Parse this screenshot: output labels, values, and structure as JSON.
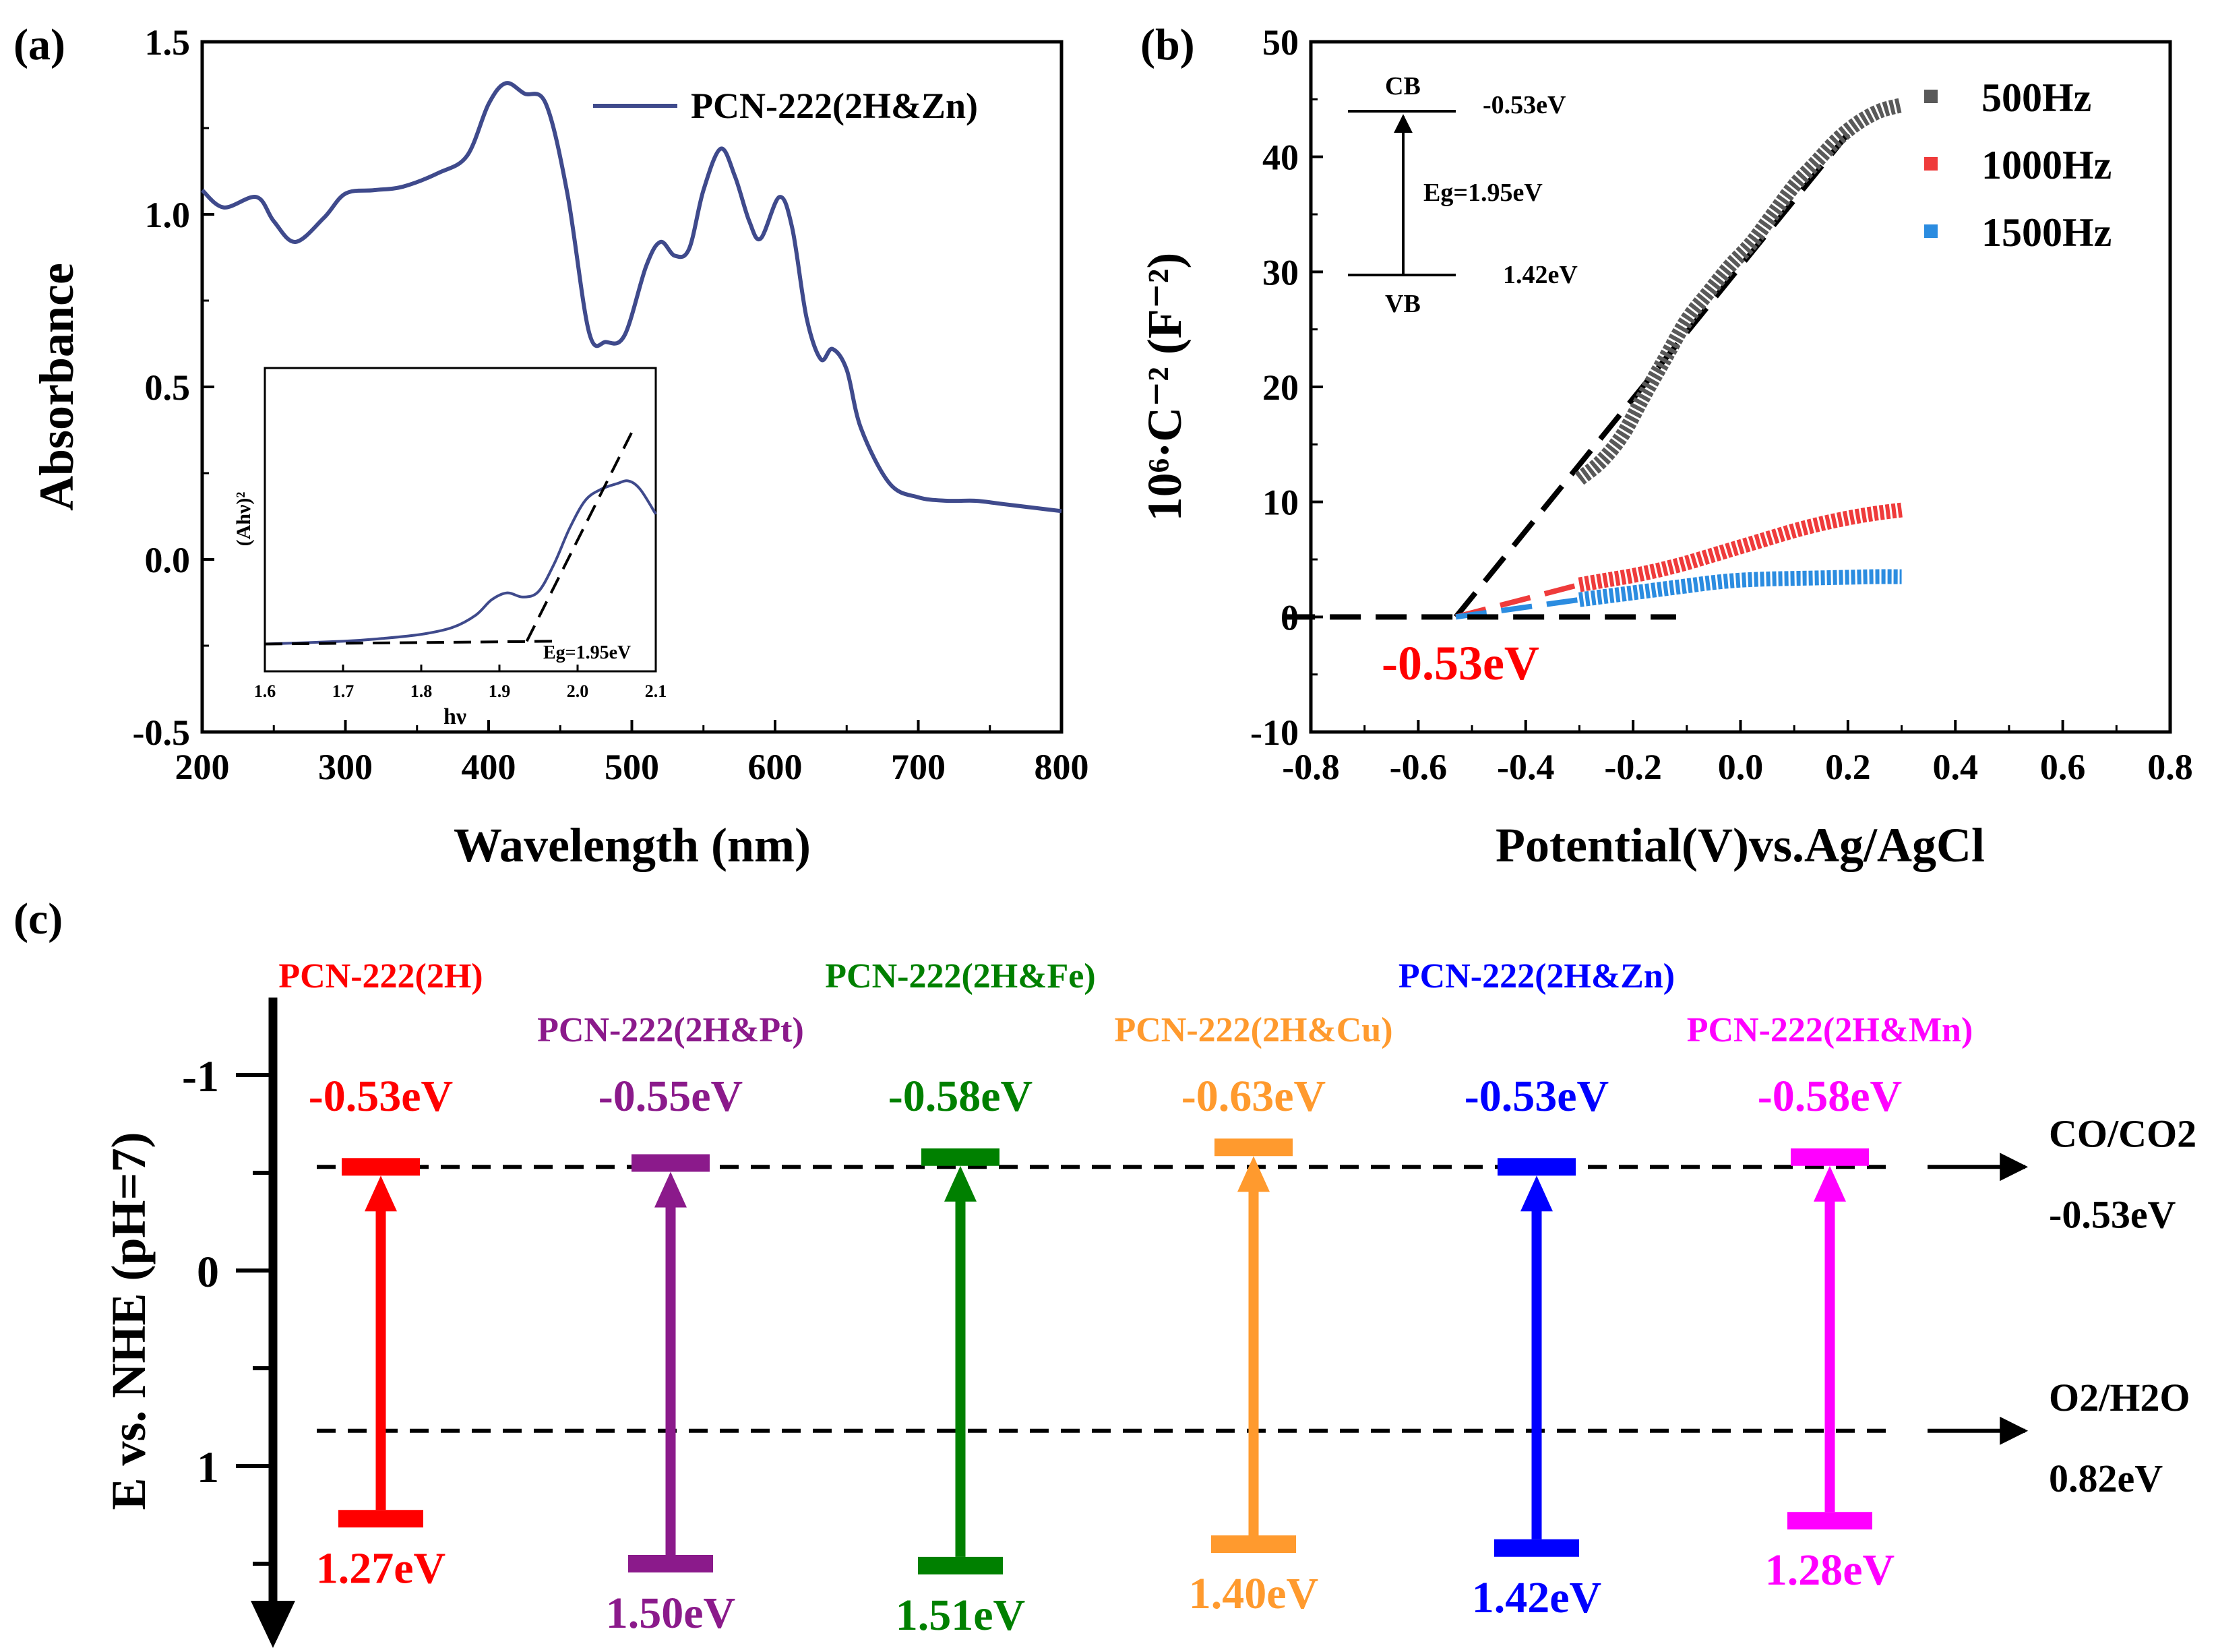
{
  "colors": {
    "abs_line": "#3f4a8c",
    "c500": "#595959",
    "c1000": "#ef3b3b",
    "c1500": "#2b8ce0",
    "red": "#ff0000",
    "purple": "#8b1a8b",
    "green": "#008000",
    "orange": "#ff9a2e",
    "blue": "#0000ff",
    "magenta": "#ff00ff"
  },
  "panel_a": {
    "label": "(a)",
    "legend": "PCN-222(2H&Zn)",
    "inset": {
      "ylabel": "(Ahν)²",
      "xlabel": "hν",
      "eg_label": "Eg=1.95eV"
    }
  },
  "panel_b": {
    "label": "(b)",
    "annotation": "-0.53eV",
    "inset": {
      "cb": "CB",
      "vb": "VB",
      "cb_value": "-0.53eV",
      "vb_value": "1.42eV",
      "eg": "Eg=1.95eV"
    }
  },
  "panel_c": {
    "label": "(c)",
    "ylabel": "E vs. NHE (pH=7)",
    "refs": [
      {
        "name": "CO/CO2",
        "value": "-0.53eV",
        "level": -0.53
      },
      {
        "name": "O2/H2O",
        "value": "0.82eV",
        "level": 0.82
      }
    ],
    "materials": [
      {
        "name": "PCN-222(2H)",
        "cb": -0.53,
        "vb": 1.27,
        "cb_label": "-0.53eV",
        "vb_label": "1.27eV",
        "color": "#ff0000"
      },
      {
        "name": "PCN-222(2H&Pt)",
        "cb": -0.55,
        "vb": 1.5,
        "cb_label": "-0.55eV",
        "vb_label": "1.50eV",
        "color": "#8b1a8b"
      },
      {
        "name": "PCN-222(2H&Fe)",
        "cb": -0.58,
        "vb": 1.51,
        "cb_label": "-0.58eV",
        "vb_label": "1.51eV",
        "color": "#008000"
      },
      {
        "name": "PCN-222(2H&Cu)",
        "cb": -0.63,
        "vb": 1.4,
        "cb_label": "-0.63eV",
        "vb_label": "1.40eV",
        "color": "#ff9a2e"
      },
      {
        "name": "PCN-222(2H&Zn)",
        "cb": -0.53,
        "vb": 1.42,
        "cb_label": "-0.53eV",
        "vb_label": "1.42eV",
        "color": "#0000ff"
      },
      {
        "name": "PCN-222(2H&Mn)",
        "cb": -0.58,
        "vb": 1.28,
        "cb_label": "-0.58eV",
        "vb_label": "1.28eV",
        "color": "#ff00ff"
      }
    ]
  },
  "chart_data": [
    {
      "type": "line",
      "title": "",
      "xlabel": "Wavelength (nm)",
      "ylabel": "Absorbance",
      "xlim": [
        200,
        800
      ],
      "ylim": [
        -0.5,
        1.5
      ],
      "xticks": [
        200,
        300,
        400,
        500,
        600,
        700,
        800
      ],
      "xtick_labels": [
        "200",
        "300",
        "400",
        "500",
        "600",
        "700",
        "800"
      ],
      "yticks": [
        -0.5,
        0.0,
        0.5,
        1.0,
        1.5
      ],
      "ytick_labels": [
        "-0.5",
        "0.0",
        "0.5",
        "1.0",
        "1.5"
      ],
      "series": [
        {
          "name": "PCN-222(2H&Zn)",
          "x": [
            200,
            215,
            238,
            250,
            265,
            285,
            300,
            320,
            340,
            365,
            385,
            400,
            412,
            425,
            440,
            455,
            470,
            482,
            495,
            510,
            520,
            530,
            540,
            550,
            562,
            572,
            582,
            590,
            603,
            612,
            622,
            632,
            640,
            650,
            660,
            680,
            700,
            720,
            740,
            760,
            780,
            800
          ],
          "y": [
            1.07,
            1.02,
            1.05,
            0.98,
            0.92,
            0.99,
            1.06,
            1.07,
            1.08,
            1.12,
            1.17,
            1.32,
            1.38,
            1.35,
            1.32,
            1.06,
            0.66,
            0.63,
            0.65,
            0.85,
            0.92,
            0.88,
            0.9,
            1.07,
            1.19,
            1.11,
            0.98,
            0.93,
            1.05,
            0.96,
            0.7,
            0.58,
            0.61,
            0.55,
            0.38,
            0.22,
            0.18,
            0.17,
            0.17,
            0.16,
            0.15,
            0.14
          ]
        }
      ],
      "inset": {
        "xlabel": "hν",
        "ylabel": "(Ahν)²",
        "xlim": [
          1.6,
          2.1
        ],
        "xticks": [
          1.6,
          1.7,
          1.8,
          1.9,
          2.0,
          2.1
        ],
        "xtick_labels": [
          "1.6",
          "1.7",
          "1.8",
          "1.9",
          "2.0",
          "2.1"
        ],
        "ylim": [
          0,
          1
        ],
        "x": [
          1.6,
          1.7,
          1.75,
          1.8,
          1.84,
          1.87,
          1.89,
          1.91,
          1.93,
          1.95,
          1.97,
          1.99,
          2.01,
          2.03,
          2.05,
          2.065,
          2.08,
          2.1
        ],
        "y": [
          0.05,
          0.06,
          0.07,
          0.085,
          0.11,
          0.155,
          0.21,
          0.235,
          0.22,
          0.24,
          0.34,
          0.47,
          0.57,
          0.61,
          0.63,
          0.64,
          0.61,
          0.52
        ],
        "tangent_x": [
          1.935,
          2.07
        ],
        "tangent_y": [
          0.06,
          0.82
        ],
        "baseline_x": [
          1.6,
          1.97
        ],
        "baseline_y": [
          0.05,
          0.06
        ],
        "eg": 1.95
      }
    },
    {
      "type": "line",
      "title": "",
      "xlabel": "Potential(V)vs.Ag/AgCl",
      "ylabel": "10⁶·C⁻² (F⁻²)",
      "xlim": [
        -0.8,
        0.8
      ],
      "ylim": [
        -10,
        50
      ],
      "xticks": [
        -0.8,
        -0.6,
        -0.4,
        -0.2,
        0.0,
        0.2,
        0.4,
        0.6,
        0.8
      ],
      "xtick_labels": [
        "-0.8",
        "-0.6",
        "-0.4",
        "-0.2",
        "0.0",
        "0.2",
        "0.4",
        "0.6",
        "0.8"
      ],
      "yticks": [
        -10,
        0,
        10,
        20,
        30,
        40,
        50
      ],
      "ytick_labels": [
        "-10",
        "0",
        "10",
        "20",
        "30",
        "40",
        "50"
      ],
      "series": [
        {
          "name": "500Hz",
          "x": [
            -0.3,
            -0.26,
            -0.22,
            -0.18,
            -0.14,
            -0.1,
            -0.06,
            -0.02,
            0.02,
            0.06,
            0.1,
            0.14,
            0.18,
            0.22,
            0.26,
            0.3
          ],
          "y": [
            12.0,
            13.5,
            15.8,
            19.2,
            22.5,
            25.8,
            28.2,
            30.5,
            32.5,
            35.0,
            37.5,
            39.5,
            41.5,
            43.0,
            44.0,
            44.5
          ]
        },
        {
          "name": "1000Hz",
          "x": [
            -0.3,
            -0.25,
            -0.2,
            -0.15,
            -0.1,
            -0.05,
            0.0,
            0.05,
            0.1,
            0.15,
            0.2,
            0.25,
            0.3
          ],
          "y": [
            2.8,
            3.2,
            3.6,
            4.1,
            4.7,
            5.4,
            6.1,
            6.8,
            7.5,
            8.1,
            8.6,
            9.0,
            9.3
          ]
        },
        {
          "name": "1500Hz",
          "x": [
            -0.3,
            -0.25,
            -0.2,
            -0.15,
            -0.1,
            -0.05,
            0.0,
            0.05,
            0.1,
            0.15,
            0.2,
            0.25,
            0.3
          ],
          "y": [
            1.5,
            1.8,
            2.1,
            2.4,
            2.7,
            3.0,
            3.2,
            3.3,
            3.35,
            3.4,
            3.45,
            3.5,
            3.5
          ]
        }
      ],
      "fit_lines": [
        {
          "color": "#000000",
          "x": [
            -0.53,
            0.2
          ],
          "y": [
            0,
            42
          ]
        },
        {
          "color": "#ef3b3b",
          "x": [
            -0.53,
            -0.3
          ],
          "y": [
            0,
            2.8
          ]
        },
        {
          "color": "#2b8ce0",
          "x": [
            -0.53,
            -0.3
          ],
          "y": [
            0,
            1.5
          ]
        },
        {
          "color": "#000000",
          "x": [
            -0.85,
            -0.12
          ],
          "y": [
            0,
            0
          ]
        }
      ],
      "flatband_potential": -0.53
    },
    {
      "type": "bar",
      "title": "",
      "ylabel": "E vs. NHE (pH=7)",
      "ylim": [
        -1.3,
        1.6
      ],
      "yticks": [
        -1,
        0,
        1
      ],
      "ytick_labels": [
        "-1",
        "0",
        "1"
      ],
      "categories": [
        "PCN-222(2H)",
        "PCN-222(2H&Pt)",
        "PCN-222(2H&Fe)",
        "PCN-222(2H&Cu)",
        "PCN-222(2H&Zn)",
        "PCN-222(2H&Mn)"
      ],
      "series": [
        {
          "name": "CB",
          "values": [
            -0.53,
            -0.55,
            -0.58,
            -0.63,
            -0.53,
            -0.58
          ]
        },
        {
          "name": "VB",
          "values": [
            1.27,
            1.5,
            1.51,
            1.4,
            1.42,
            1.28
          ]
        }
      ],
      "reference_levels": [
        {
          "name": "CO/CO2",
          "value": -0.53
        },
        {
          "name": "O2/H2O",
          "value": 0.82
        }
      ]
    }
  ]
}
